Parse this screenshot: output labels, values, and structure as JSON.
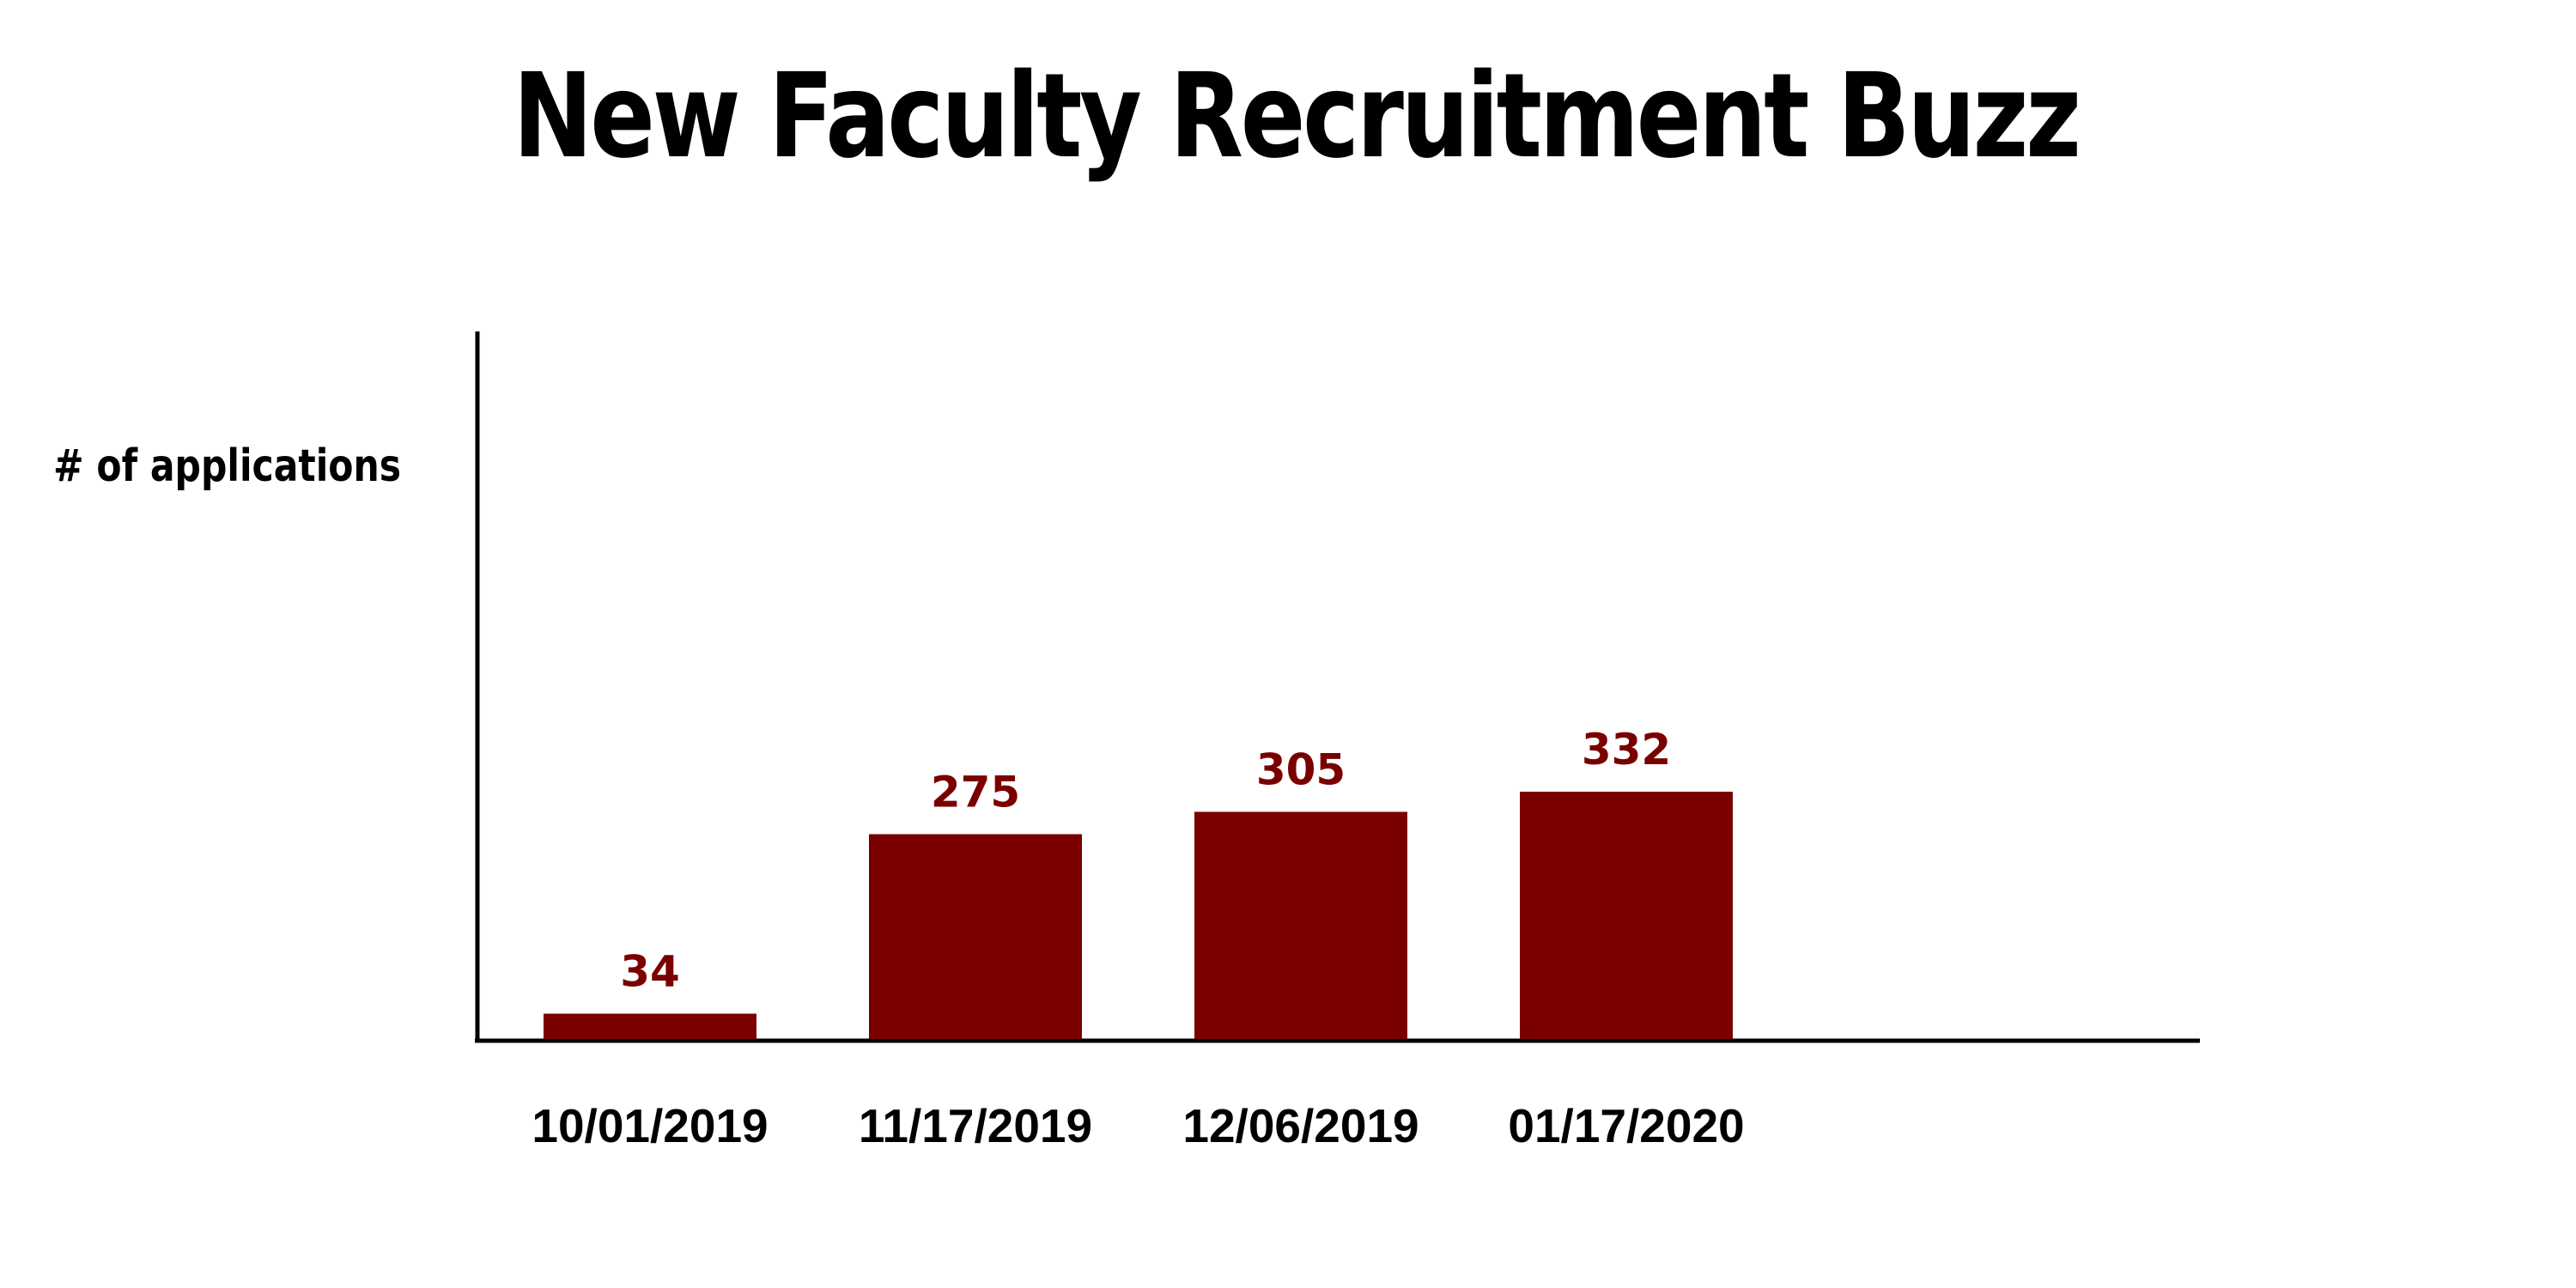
{
  "chart_data": {
    "type": "bar",
    "title": "New Faculty Recruitment Buzz",
    "ylabel": "# of applications",
    "xlabel": "",
    "categories": [
      "10/01/2019",
      "11/17/2019",
      "12/06/2019",
      "01/17/2020"
    ],
    "values": [
      34,
      275,
      305,
      332
    ],
    "ylim": [
      0,
      950
    ],
    "grid": false,
    "legend": "none",
    "bar_color": "#7a0000",
    "label_color": "#7a0000",
    "axis_color": "#000000"
  }
}
